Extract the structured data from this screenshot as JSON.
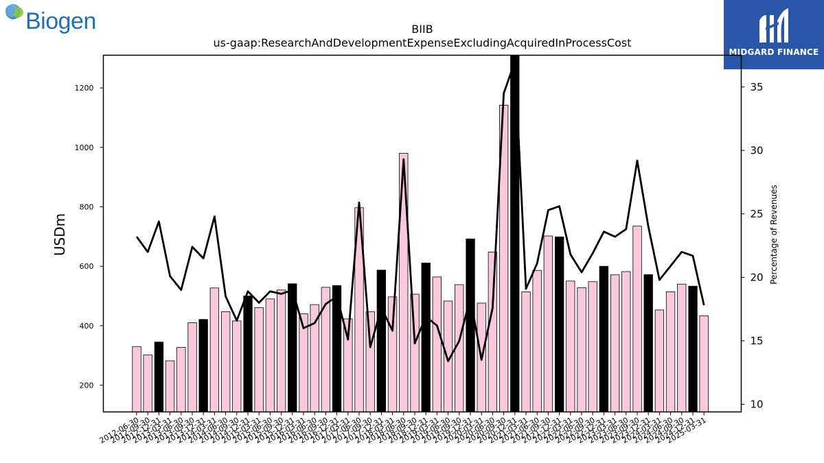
{
  "logos": {
    "left_brand": "Biogen",
    "right_brand": "MIDGARD FINANCE",
    "left_colors": [
      "#1f6fb2",
      "#8cc63f"
    ],
    "right_bg": "#2a56a8"
  },
  "chart_data": {
    "type": "bar",
    "title": "BIIB",
    "subtitle": "us-gaap:ResearchAndDevelopmentExpenseExcludingAcquiredInProcessCost",
    "ylabel": "USDm",
    "y2label": "Percentage of Revenues",
    "ylim": [
      110,
      1310
    ],
    "y2lim": [
      9.4,
      37.5
    ],
    "yticks": [
      200,
      400,
      600,
      800,
      1000,
      1200
    ],
    "y2ticks": [
      10,
      15,
      20,
      25,
      30,
      35
    ],
    "legend": "none",
    "grid": false,
    "bar_colors": {
      "quarter": "#f8c8dc",
      "annual": "#000000"
    },
    "line_color": "#000000",
    "categories": [
      "2012-06-30",
      "2012-09-30",
      "2012-12-31",
      "2013-03-31",
      "2013-06-30",
      "2013-09-30",
      "2013-12-31",
      "2014-03-31",
      "2014-06-30",
      "2014-09-30",
      "2014-12-31",
      "2015-03-31",
      "2015-06-30",
      "2015-09-30",
      "2015-12-31",
      "2016-03-31",
      "2016-06-30",
      "2016-09-30",
      "2016-12-31",
      "2017-03-31",
      "2017-06-30",
      "2017-09-30",
      "2017-12-31",
      "2018-03-31",
      "2018-06-30",
      "2018-09-30",
      "2018-12-31",
      "2019-03-31",
      "2019-06-30",
      "2019-09-30",
      "2019-12-31",
      "2020-03-31",
      "2020-06-30",
      "2020-09-30",
      "2020-12-31",
      "2021-03-31",
      "2021-06-30",
      "2021-09-30",
      "2021-12-31",
      "2022-03-31",
      "2022-06-30",
      "2022-09-30",
      "2022-12-31",
      "2023-03-31",
      "2023-06-30",
      "2023-09-30",
      "2023-12-31",
      "2024-03-31",
      "2024-06-30",
      "2024-09-30",
      "2024-12-31",
      "2025-03-31"
    ],
    "series": [
      {
        "name": "",
        "kind": "bar",
        "values": [
          330,
          302,
          345,
          282,
          327,
          410,
          421,
          527,
          447,
          416,
          500,
          461,
          490,
          520,
          541,
          440,
          471,
          529,
          535,
          423,
          797,
          447,
          587,
          497,
          980,
          506,
          611,
          564,
          483,
          538,
          692,
          476,
          648,
          1142,
          1310,
          514,
          586,
          702,
          699,
          550,
          528,
          548,
          600,
          571,
          582,
          735,
          572,
          453,
          514,
          540,
          533,
          433
        ],
        "annual": [
          false,
          false,
          true,
          false,
          false,
          false,
          true,
          false,
          false,
          false,
          true,
          false,
          false,
          false,
          true,
          false,
          false,
          false,
          true,
          false,
          false,
          false,
          true,
          false,
          false,
          false,
          true,
          false,
          false,
          false,
          true,
          false,
          false,
          false,
          true,
          false,
          false,
          false,
          true,
          false,
          false,
          false,
          true,
          false,
          false,
          false,
          true,
          false,
          false,
          false,
          true,
          false
        ]
      },
      {
        "name": "",
        "kind": "line",
        "axis": "right",
        "values": [
          23.2,
          22.0,
          24.4,
          20.1,
          19.0,
          22.4,
          21.5,
          24.8,
          18.5,
          16.6,
          18.9,
          18.0,
          18.9,
          18.7,
          19.0,
          16.0,
          16.4,
          17.9,
          18.5,
          15.1,
          25.9,
          14.5,
          17.6,
          15.8,
          29.3,
          14.8,
          16.9,
          16.2,
          13.4,
          15.0,
          18.4,
          13.5,
          17.6,
          34.5,
          37.0,
          19.1,
          21.1,
          25.3,
          25.6,
          21.8,
          20.4,
          21.9,
          23.6,
          23.2,
          23.8,
          29.2,
          24.0,
          19.8,
          20.9,
          22.0,
          21.7,
          17.8
        ]
      }
    ],
    "x_tick_labels": "categories",
    "x_tick_rotation": 30
  }
}
